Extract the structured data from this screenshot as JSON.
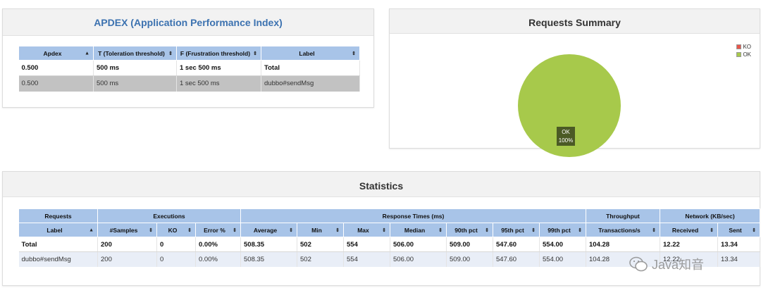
{
  "apdex": {
    "title": "APDEX (Application Performance Index)",
    "headers": [
      "Apdex",
      "T (Toleration threshold)",
      "F (Frustration threshold)",
      "Label"
    ],
    "rows": [
      [
        "0.500",
        "500 ms",
        "1 sec 500 ms",
        "Total"
      ],
      [
        "0.500",
        "500 ms",
        "1 sec 500 ms",
        "dubbo#sendMsg"
      ]
    ]
  },
  "summary": {
    "title": "Requests Summary",
    "legend": [
      {
        "label": "KO",
        "color": "#e8564b"
      },
      {
        "label": "OK",
        "color": "#a7c94b"
      }
    ]
  },
  "chart_data": {
    "type": "pie",
    "title": "Requests Summary",
    "categories": [
      "KO",
      "OK"
    ],
    "values": [
      0,
      100
    ],
    "colors": [
      "#e8564b",
      "#a7c94b"
    ],
    "slice_label": {
      "name": "OK",
      "percent": "100%"
    },
    "legend_position": "top-right"
  },
  "stats": {
    "title": "Statistics",
    "groups": [
      "Requests",
      "Executions",
      "Response Times (ms)",
      "Throughput",
      "Network (KB/sec)"
    ],
    "headers": [
      "Label",
      "#Samples",
      "KO",
      "Error %",
      "Average",
      "Min",
      "Max",
      "Median",
      "90th pct",
      "95th pct",
      "99th pct",
      "Transactions/s",
      "Received",
      "Sent"
    ],
    "rows": [
      [
        "Total",
        "200",
        "0",
        "0.00%",
        "508.35",
        "502",
        "554",
        "506.00",
        "509.00",
        "547.60",
        "554.00",
        "104.28",
        "12.22",
        "13.34"
      ],
      [
        "dubbo#sendMsg",
        "200",
        "0",
        "0.00%",
        "508.35",
        "502",
        "554",
        "506.00",
        "509.00",
        "547.60",
        "554.00",
        "104.28",
        "12.22",
        "13.34"
      ]
    ]
  },
  "watermark": {
    "text": "Java知音"
  }
}
